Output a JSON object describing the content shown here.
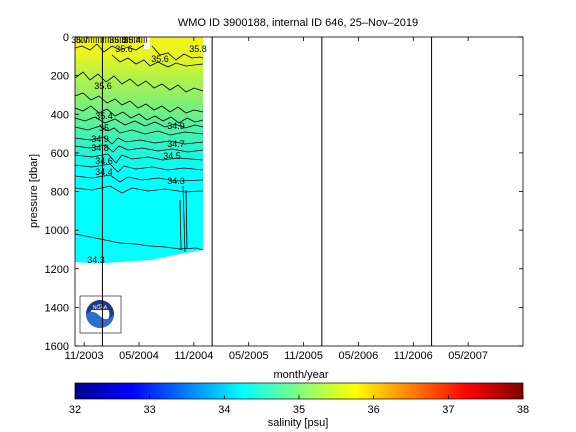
{
  "chart_data": {
    "type": "heatmap",
    "title": "WMO ID 3900188, internal ID 646, 25–Nov–2019",
    "xlabel": "month/year",
    "ylabel": "pressure [dbar]",
    "x_tick_labels": [
      "11/2003",
      "05/2004",
      "11/2004",
      "05/2005",
      "11/2005",
      "05/2006",
      "11/2006",
      "05/2007"
    ],
    "y_ticks": [
      0,
      200,
      400,
      600,
      800,
      1000,
      1200,
      1400,
      1600
    ],
    "ylim": [
      1600,
      0
    ],
    "xlim": [
      "10/2003",
      "11/2007"
    ],
    "grid": "vertical lines at 01/2004, 01/2005, 01/2006, 01/2007",
    "data_extent": {
      "start": "10/2003",
      "end": "12/2004",
      "max_pressure": 1180
    },
    "contour_labels": [
      "35.7",
      "35.8",
      "35.4",
      "35.6",
      "35.6",
      "35.8",
      "35.6",
      "35.4",
      "35",
      "34.9",
      "34.9",
      "34.8",
      "34.7",
      "34.6",
      "34.5",
      "34.4",
      "34.3",
      "34.3"
    ],
    "colorbar": {
      "label": "salinity [psu]",
      "ticks": [
        32,
        33,
        34,
        35,
        36,
        37,
        38
      ],
      "range": [
        32,
        38
      ],
      "colormap": [
        "#00008f",
        "#0000ff",
        "#0080ff",
        "#00ffff",
        "#80ff80",
        "#ffff00",
        "#ff8000",
        "#ff0000",
        "#800000"
      ]
    },
    "logo": "NOAA"
  },
  "icons": {
    "logo": "noaa-logo-icon"
  }
}
